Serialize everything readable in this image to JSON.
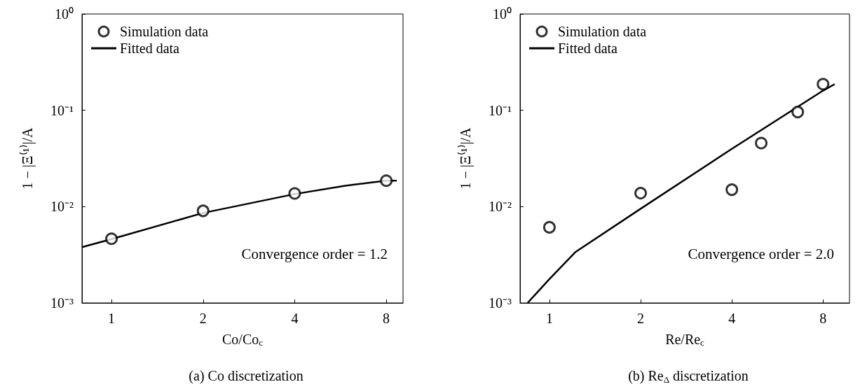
{
  "chart_data": [
    {
      "type": "scatter",
      "title": "(a) Co discretization",
      "xlabel": "Co/Co$_{c}$",
      "ylabel": "1 − |Ξ⁽¹⁾|/A",
      "log": "xy",
      "legend": "top left",
      "xlim": [
        0.8,
        9.08
      ],
      "xticks": [
        1,
        2,
        4,
        8
      ],
      "ylim": [
        0.001,
        1
      ],
      "yticks": [
        {
          "value": 0.001,
          "label": "10⁻³"
        },
        {
          "value": 0.01,
          "label": "10⁻²"
        },
        {
          "value": 0.1,
          "label": "10⁻¹"
        },
        {
          "value": 1,
          "label": "10⁰"
        }
      ],
      "annotations": [
        "Convergence order = 1.2"
      ],
      "series": [
        {
          "name": "Simulation data",
          "marker": "circle",
          "color": "#000000",
          "x": [
            1,
            2,
            4,
            8
          ],
          "values": [
            0.00464,
            0.00904,
            0.0137,
            0.0186
          ]
        },
        {
          "name": "Fitted data",
          "type": "line",
          "marker": "none",
          "line_style": "solid",
          "color": "#000000",
          "x": [
            0.8,
            1,
            2,
            4,
            5.86,
            8,
            8.66
          ],
          "values": [
            0.0038,
            0.0046,
            0.0086,
            0.0135,
            0.0165,
            0.0186,
            0.0186
          ]
        }
      ]
    },
    {
      "type": "scatter",
      "title": "(b) Re$_{Δ}$ discretization",
      "xlabel": "Re/Re$_{c}$",
      "ylabel": "1 − |Ξ⁽¹⁾|/A",
      "log": "xy",
      "legend": "top left",
      "xlim": [
        0.8,
        9.78
      ],
      "xticks": [
        1,
        2,
        4,
        8
      ],
      "ylim": [
        0.001,
        1
      ],
      "yticks": [
        {
          "value": 0.001,
          "label": "10⁻³"
        },
        {
          "value": 0.01,
          "label": "10⁻²"
        },
        {
          "value": 0.1,
          "label": "10⁻¹"
        },
        {
          "value": 1,
          "label": "10⁰"
        }
      ],
      "annotations": [
        "Convergence order = 2.0"
      ],
      "series": [
        {
          "name": "Simulation data",
          "marker": "circle",
          "color": "#000000",
          "x": [
            1,
            2,
            4,
            5,
            6.6,
            8
          ],
          "values": [
            0.0061,
            0.0138,
            0.015,
            0.0457,
            0.096,
            0.187
          ]
        },
        {
          "name": "Fitted data",
          "type": "line",
          "marker": "none",
          "line_style": "solid",
          "color": "#000000",
          "x": [
            0.847,
            1,
            1.216,
            2,
            4,
            8,
            8.74
          ],
          "values": [
            0.001,
            0.00177,
            0.00336,
            0.0095,
            0.0398,
            0.16,
            0.187
          ]
        }
      ]
    }
  ]
}
